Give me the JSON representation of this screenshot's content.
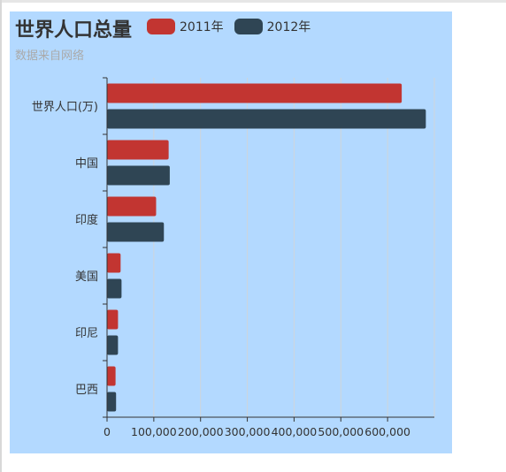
{
  "chart_data": {
    "type": "bar",
    "orientation": "horizontal",
    "title": "世界人口总量",
    "subtitle": "数据来自网络",
    "categories": [
      "世界人口(万)",
      "中国",
      "印度",
      "美国",
      "印尼",
      "巴西"
    ],
    "series": [
      {
        "name": "2011年",
        "color": "#c23531",
        "values": [
          630230,
          131744,
          104970,
          29034,
          23489,
          18203
        ]
      },
      {
        "name": "2012年",
        "color": "#2f4554",
        "values": [
          681807,
          134141,
          121594,
          31000,
          23438,
          19325
        ]
      }
    ],
    "xticks": [
      0,
      100000,
      200000,
      300000,
      400000,
      500000,
      600000
    ],
    "xtick_labels": [
      "0",
      "100,000",
      "200,000",
      "300,000",
      "400,000",
      "500,000",
      "600,000"
    ],
    "xlim": [
      0,
      700000
    ],
    "grid": "vertical",
    "legend_position": "top"
  }
}
